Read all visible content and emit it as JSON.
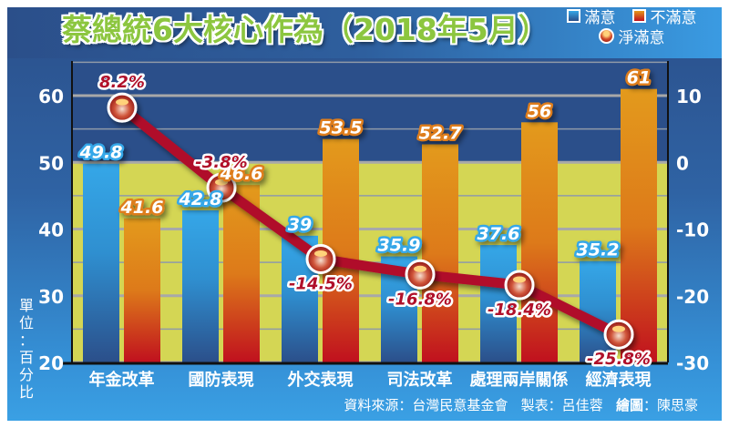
{
  "title": "蔡總統6大核心作為（2018年5月）",
  "legend": {
    "satisfied": "滿意",
    "dissatisfied": "不滿意",
    "net": "淨滿意"
  },
  "unit_label": [
    "單",
    "位",
    "：",
    "百",
    "分",
    "比"
  ],
  "source": {
    "data_source": "資料來源：台灣民意基金會",
    "table_by": "製表：呂佳蓉",
    "drawn_label": "繪圖",
    "drawn_by": "：陳思豪"
  },
  "colors": {
    "satisfied": "#35a7e8",
    "dissatisfied_top": "#e39a1c",
    "dissatisfied_bottom": "#c0101e",
    "net_line": "#b0102a",
    "title": "#8cc63f",
    "yellow_band": "#d4d654",
    "plot_bg": "#2b4f8a"
  },
  "chart_data": {
    "type": "bar",
    "title": "蔡總統6大核心作為（2018年5月）",
    "categories": [
      "年金改革",
      "國防表現",
      "外交表現",
      "司法改革",
      "處理兩岸關係",
      "經濟表現"
    ],
    "series": [
      {
        "name": "滿意",
        "type": "bar",
        "axis": "left",
        "values": [
          49.8,
          42.8,
          39,
          35.9,
          37.6,
          35.2
        ],
        "labels": [
          "49.8",
          "42.8",
          "39",
          "35.9",
          "37.6",
          "35.2"
        ]
      },
      {
        "name": "不滿意",
        "type": "bar",
        "axis": "left",
        "values": [
          41.6,
          46.6,
          53.5,
          52.7,
          56,
          61
        ],
        "labels": [
          "41.6",
          "46.6",
          "53.5",
          "52.7",
          "56",
          "61"
        ]
      },
      {
        "name": "淨滿意",
        "type": "line",
        "axis": "right",
        "values": [
          8.2,
          -3.8,
          -14.5,
          -16.8,
          -18.4,
          -25.8
        ],
        "labels": [
          "8.2%",
          "-3.8%",
          "-14.5%",
          "-16.8%",
          "-18.4%",
          "-25.8%"
        ]
      }
    ],
    "left_axis": {
      "label": "單位：百分比",
      "ylim": [
        20,
        65
      ],
      "ticks": [
        20,
        30,
        40,
        50,
        60
      ]
    },
    "right_axis": {
      "ylim": [
        -30,
        15
      ],
      "ticks": [
        -30,
        -20,
        -10,
        0,
        10
      ]
    },
    "xlabel": "",
    "ylabel": "單位：百分比",
    "grid": true,
    "legend_position": "top-right"
  }
}
